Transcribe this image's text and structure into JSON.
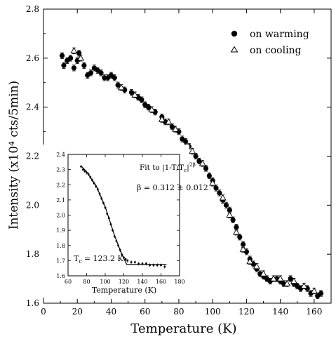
{
  "chart_data": [
    {
      "type": "scatter",
      "xlabel": "Temperature  (K)",
      "ylabel": "Intensity (x10⁴ cts/5min)",
      "xlim": [
        0,
        170
      ],
      "ylim": [
        1.6,
        2.8
      ],
      "xticks": [
        0,
        20,
        40,
        60,
        80,
        100,
        120,
        140,
        160
      ],
      "yticks": [
        1.6,
        1.8,
        2.0,
        2.2,
        2.4,
        2.6,
        2.8
      ],
      "xtick_labels": [
        "0",
        "20",
        "40",
        "60",
        "80",
        "100",
        "120",
        "140",
        "160"
      ],
      "ytick_labels": [
        "1.6",
        "1.8",
        "2.0",
        "2.2",
        "2.4",
        "2.6",
        "2.8"
      ],
      "legend_position": "top-right",
      "series": [
        {
          "name": "on warming",
          "marker": "filled-circle",
          "color": "#000000",
          "points": [
            [
              11,
              2.61
            ],
            [
              12,
              2.57
            ],
            [
              14,
              2.59
            ],
            [
              16,
              2.6
            ],
            [
              18,
              2.56
            ],
            [
              20,
              2.59
            ],
            [
              21,
              2.62
            ],
            [
              24,
              2.57
            ],
            [
              26,
              2.53
            ],
            [
              28,
              2.54
            ],
            [
              30,
              2.56
            ],
            [
              32,
              2.55
            ],
            [
              34,
              2.54
            ],
            [
              36,
              2.52
            ],
            [
              38,
              2.52
            ],
            [
              40,
              2.53
            ],
            [
              42,
              2.52
            ],
            [
              44,
              2.49
            ],
            [
              48,
              2.47
            ],
            [
              52,
              2.46
            ],
            [
              56,
              2.44
            ],
            [
              58,
              2.43
            ],
            [
              60,
              2.41
            ],
            [
              62,
              2.4
            ],
            [
              66,
              2.38
            ],
            [
              70,
              2.36
            ],
            [
              72,
              2.34
            ],
            [
              76,
              2.32
            ],
            [
              80,
              2.3
            ],
            [
              82,
              2.27
            ],
            [
              84,
              2.26
            ],
            [
              86,
              2.24
            ],
            [
              90,
              2.2
            ],
            [
              92,
              2.18
            ],
            [
              96,
              2.15
            ],
            [
              98,
              2.12
            ],
            [
              100,
              2.1
            ],
            [
              102,
              2.07
            ],
            [
              104,
              2.05
            ],
            [
              106,
              2.02
            ],
            [
              108,
              2.0
            ],
            [
              110,
              1.98
            ],
            [
              112,
              1.94
            ],
            [
              114,
              1.91
            ],
            [
              116,
              1.87
            ],
            [
              118,
              1.84
            ],
            [
              120,
              1.81
            ],
            [
              122,
              1.78
            ],
            [
              124,
              1.76
            ],
            [
              126,
              1.74
            ],
            [
              128,
              1.72
            ],
            [
              130,
              1.71
            ],
            [
              132,
              1.7
            ],
            [
              134,
              1.69
            ],
            [
              138,
              1.7
            ],
            [
              140,
              1.69
            ],
            [
              142,
              1.68
            ],
            [
              146,
              1.7
            ],
            [
              148,
              1.68
            ],
            [
              150,
              1.67
            ],
            [
              152,
              1.66
            ],
            [
              156,
              1.66
            ],
            [
              158,
              1.64
            ],
            [
              162,
              1.63
            ],
            [
              164,
              1.64
            ]
          ]
        },
        {
          "name": "on cooling",
          "marker": "open-triangle",
          "color": "#000000",
          "points": [
            [
              18,
              2.63
            ],
            [
              22,
              2.6
            ],
            [
              46,
              2.48
            ],
            [
              54,
              2.45
            ],
            [
              64,
              2.39
            ],
            [
              70,
              2.35
            ],
            [
              74,
              2.34
            ],
            [
              78,
              2.31
            ],
            [
              88,
              2.22
            ],
            [
              94,
              2.17
            ],
            [
              100,
              2.09
            ],
            [
              106,
              2.03
            ],
            [
              110,
              1.96
            ],
            [
              114,
              1.89
            ],
            [
              118,
              1.82
            ],
            [
              122,
              1.77
            ],
            [
              126,
              1.75
            ],
            [
              130,
              1.72
            ],
            [
              136,
              1.7
            ],
            [
              140,
              1.7
            ],
            [
              144,
              1.68
            ],
            [
              148,
              1.69
            ],
            [
              154,
              1.67
            ],
            [
              160,
              1.65
            ]
          ]
        }
      ]
    },
    {
      "type": "scatter",
      "xlabel": "Temperature   (K)",
      "xlim": [
        60,
        180
      ],
      "ylim": [
        1.6,
        2.4
      ],
      "xticks": [
        60,
        80,
        100,
        120,
        140,
        160,
        180
      ],
      "yticks": [
        1.6,
        1.7,
        1.8,
        1.9,
        2.0,
        2.1,
        2.2,
        2.3,
        2.4
      ],
      "xtick_labels": [
        "60",
        "80",
        "100",
        "120",
        "140",
        "160",
        "180"
      ],
      "ytick_labels": [
        "1.6",
        "1.7",
        "1.8",
        "1.9",
        "2.0",
        "2.1",
        "2.2",
        "2.3",
        "2.4"
      ],
      "annotations": {
        "fit": "Fit to  |1-T/T",
        "fit_sub": "c",
        "fit_tail": "|",
        "fit_sup": "2β",
        "beta": "β = 0.312 ± 0.012",
        "tc_prefix": "T",
        "tc_sub": "c",
        "tc_value": "= 123.2 K"
      },
      "points": [
        [
          74,
          2.32
        ],
        [
          76,
          2.3
        ],
        [
          78,
          2.29
        ],
        [
          80,
          2.28
        ],
        [
          82,
          2.27
        ],
        [
          84,
          2.25
        ],
        [
          86,
          2.23
        ],
        [
          88,
          2.21
        ],
        [
          90,
          2.19
        ],
        [
          92,
          2.17
        ],
        [
          94,
          2.14
        ],
        [
          96,
          2.11
        ],
        [
          98,
          2.08
        ],
        [
          100,
          2.05
        ],
        [
          102,
          2.01
        ],
        [
          104,
          1.98
        ],
        [
          106,
          1.94
        ],
        [
          108,
          1.9
        ],
        [
          110,
          1.86
        ],
        [
          112,
          1.83
        ],
        [
          114,
          1.8
        ],
        [
          116,
          1.77
        ],
        [
          118,
          1.74
        ],
        [
          120,
          1.72
        ],
        [
          122,
          1.71
        ],
        [
          124,
          1.7
        ],
        [
          128,
          1.69
        ],
        [
          132,
          1.69
        ],
        [
          136,
          1.68
        ],
        [
          140,
          1.68
        ],
        [
          144,
          1.68
        ],
        [
          148,
          1.67
        ],
        [
          152,
          1.67
        ],
        [
          156,
          1.67
        ],
        [
          160,
          1.67
        ],
        [
          164,
          1.66
        ]
      ],
      "fit_line": [
        [
          74,
          2.325
        ],
        [
          80,
          2.285
        ],
        [
          90,
          2.195
        ],
        [
          100,
          2.055
        ],
        [
          110,
          1.865
        ],
        [
          118,
          1.74
        ],
        [
          123.2,
          1.675
        ],
        [
          130,
          1.675
        ],
        [
          140,
          1.675
        ],
        [
          150,
          1.675
        ],
        [
          160,
          1.675
        ],
        [
          166,
          1.675
        ]
      ]
    }
  ]
}
